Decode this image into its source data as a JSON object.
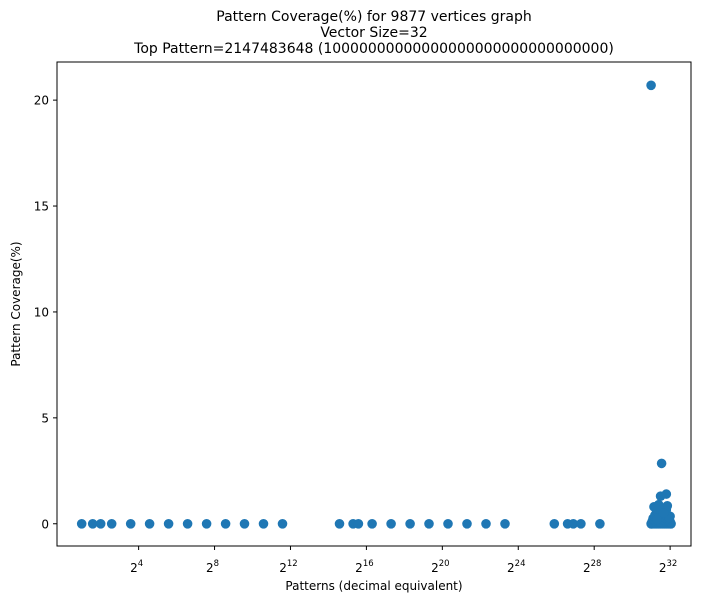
{
  "chart_data": {
    "type": "scatter",
    "title": [
      "Pattern Coverage(%) for 9877 vertices graph",
      "Vector Size=32",
      "Top Pattern=2147483648 (10000000000000000000000000000000)"
    ],
    "xlabel": "Patterns (decimal equivalent)",
    "ylabel": "Pattern Coverage(%)",
    "x_scale": "log2",
    "x_ticks": [
      {
        "exp": 4,
        "base": "2",
        "sup": "4"
      },
      {
        "exp": 8,
        "base": "2",
        "sup": "8"
      },
      {
        "exp": 12,
        "base": "2",
        "sup": "12"
      },
      {
        "exp": 16,
        "base": "2",
        "sup": "16"
      },
      {
        "exp": 20,
        "base": "2",
        "sup": "20"
      },
      {
        "exp": 24,
        "base": "2",
        "sup": "24"
      },
      {
        "exp": 28,
        "base": "2",
        "sup": "28"
      },
      {
        "exp": 32,
        "base": "2",
        "sup": "32"
      }
    ],
    "y_ticks": [
      0,
      5,
      10,
      15,
      20
    ],
    "xlim_log2": [
      -0.3,
      33.1
    ],
    "ylim": [
      -1.05,
      21.8
    ],
    "grid": false,
    "marker_color": "#1f77b4",
    "x_log2": [
      1,
      1.58,
      2,
      2.58,
      3.58,
      4.58,
      5.58,
      6.58,
      7.58,
      8.58,
      9.58,
      10.58,
      11.58,
      14.58,
      15.3,
      15.58,
      16.3,
      17.3,
      18.3,
      19.3,
      20.3,
      21.3,
      22.3,
      23.3,
      25.9,
      26.6,
      26.9,
      27.3,
      28.3,
      31,
      31,
      31.02,
      31.1,
      31.2,
      31.3,
      31.4,
      31.5,
      31.6,
      31.7,
      31.8,
      31.9,
      32,
      32.05,
      31.05,
      31.1,
      31.15,
      31.25,
      31.35,
      31.45,
      31.55,
      31.65,
      31.75,
      31.85,
      31.95,
      32,
      31.05,
      31.15,
      31.25,
      31.35,
      31.45,
      31.6,
      31.75,
      31.9,
      32,
      31.1,
      31.2,
      31.3,
      31.5,
      31.7,
      31.9,
      31.2,
      31.4,
      31.6,
      31.8,
      32,
      31.3,
      31.55,
      31.8,
      31.15,
      31.85,
      31.4,
      31.95,
      31.25,
      31.65,
      31.5,
      31.8,
      31.55,
      31.3
    ],
    "y": [
      0,
      0,
      0,
      0,
      0,
      0,
      0,
      0,
      0,
      0,
      0,
      0,
      0,
      0,
      0,
      0,
      0,
      0,
      0,
      0,
      0,
      0,
      0,
      0,
      0,
      0,
      0,
      0,
      0,
      20.7,
      0,
      0,
      0,
      0,
      0,
      0,
      0,
      0,
      0,
      0,
      0,
      0,
      0,
      0.05,
      0.05,
      0.05,
      0.05,
      0.05,
      0.05,
      0.05,
      0.05,
      0.05,
      0.05,
      0.05,
      0.05,
      0.1,
      0.15,
      0.12,
      0.18,
      0.1,
      0.2,
      0.15,
      0.12,
      0.1,
      0.25,
      0.3,
      0.22,
      0.35,
      0.3,
      0.25,
      0.4,
      0.45,
      0.5,
      0.4,
      0.35,
      0.6,
      0.55,
      0.65,
      0.8,
      0.85,
      0.9,
      0.3,
      0.7,
      0.5,
      1.3,
      1.4,
      2.85,
      0.2
    ]
  }
}
